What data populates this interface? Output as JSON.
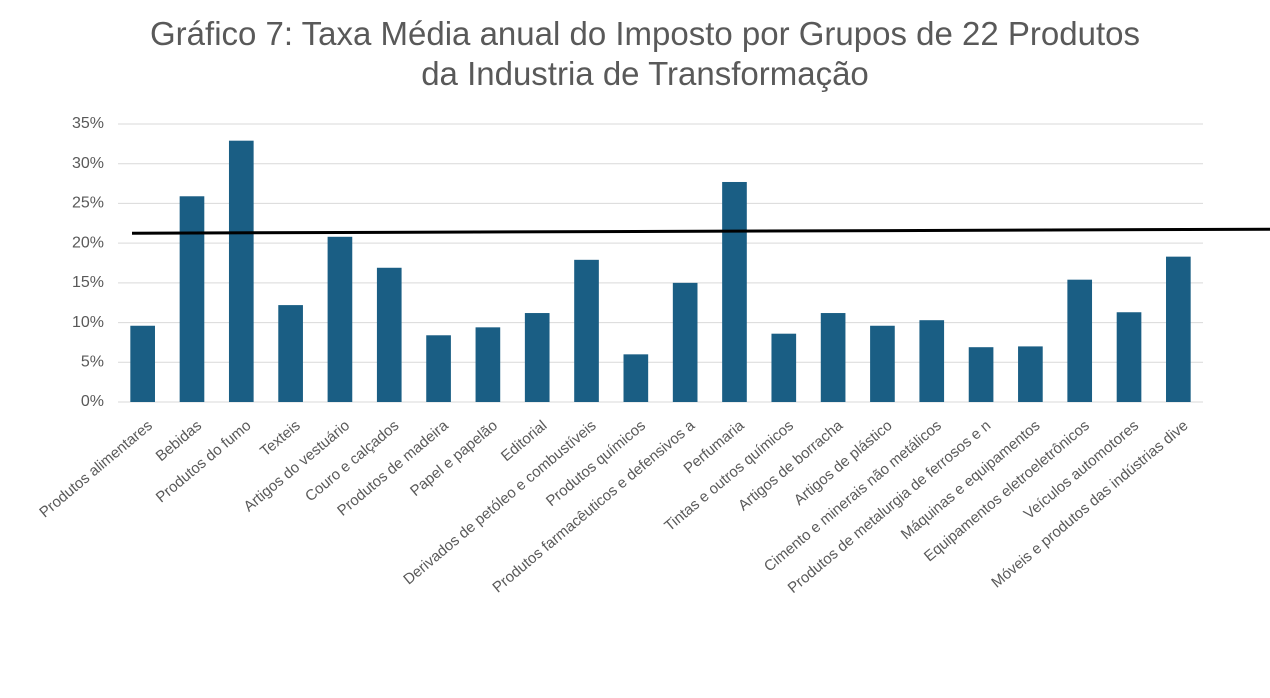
{
  "chart_data": {
    "type": "bar",
    "title": "Gráfico 7: Taxa Média anual do Imposto por Grupos de 22 Produtos da Industria de Transformação",
    "categories": [
      "Produtos alimentares",
      "Bebidas",
      "Produtos do fumo",
      "Texteis",
      "Artigos do vestuário",
      "Couro e calçados",
      "Produtos de madeira",
      "Papel e papelão",
      "Editorial",
      "Derivados de petóleo e combustíveis",
      "Produtos químicos",
      "Produtos farmacêuticos e defensivos a",
      "Perfumaria",
      "Tintas e outros químicos",
      "Artigos de borracha",
      "Artigos de plástico",
      "Cimento e minerais não metálicos",
      "Produtos de metalurgia de ferrosos e n",
      "Máquinas e equipamentos",
      "Equipamentos eletroeletrônicos",
      "Veículos automotores",
      "Móveis e produtos das indústrias dive"
    ],
    "values": [
      9.6,
      25.9,
      32.9,
      12.2,
      20.8,
      16.9,
      8.4,
      9.4,
      11.2,
      17.9,
      6.0,
      15.0,
      27.7,
      8.6,
      11.2,
      9.6,
      10.3,
      6.9,
      7.0,
      15.4,
      11.3,
      18.3
    ],
    "color": "#1a5e84",
    "ylim": [
      0,
      35
    ],
    "yticks": [
      {
        "value": 0,
        "label": "0%"
      },
      {
        "value": 5,
        "label": "5%"
      },
      {
        "value": 10,
        "label": "10%"
      },
      {
        "value": 15,
        "label": "15%"
      },
      {
        "value": 20,
        "label": "20%"
      },
      {
        "value": 25,
        "label": "25%"
      },
      {
        "value": 30,
        "label": "30%"
      },
      {
        "value": 35,
        "label": "35%"
      }
    ],
    "grid": true,
    "reference_line": 21.5
  }
}
